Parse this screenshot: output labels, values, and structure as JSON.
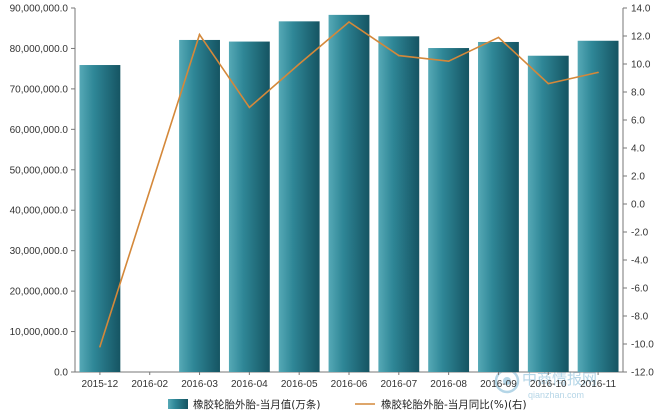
{
  "chart_data": {
    "type": "bar",
    "categories": [
      "2015-12",
      "2016-02",
      "2016-03",
      "2016-04",
      "2016-05",
      "2016-06",
      "2016-07",
      "2016-08",
      "2016-09",
      "2016-10",
      "2016-11"
    ],
    "series": [
      {
        "name": "橡胶轮胎外胎-当月值(万条)",
        "type": "bar",
        "axis": "left",
        "color": "#2a7d8e",
        "values": [
          75900000,
          null,
          82100000,
          81700000,
          86700000,
          88300000,
          83000000,
          80100000,
          81600000,
          78200000,
          81900000
        ]
      },
      {
        "name": "橡胶轮胎外胎-当月同比(%)(右)",
        "type": "line",
        "axis": "right",
        "color": "#d4883a",
        "values": [
          -10.2,
          null,
          12.1,
          6.9,
          10.0,
          13.0,
          10.6,
          10.2,
          11.9,
          8.6,
          9.4
        ]
      }
    ],
    "left_axis": {
      "min": 0,
      "max": 90000000,
      "ticks": [
        "0.0",
        "10,000,000.0",
        "20,000,000.0",
        "30,000,000.0",
        "40,000,000.0",
        "50,000,000.0",
        "60,000,000.0",
        "70,000,000.0",
        "80,000,000.0",
        "90,000,000.0"
      ]
    },
    "right_axis": {
      "min": -12,
      "max": 14,
      "ticks": [
        "-12.0",
        "-10.0",
        "-8.0",
        "-6.0",
        "-4.0",
        "-2.0",
        "0.0",
        "2.0",
        "4.0",
        "6.0",
        "8.0",
        "10.0",
        "12.0",
        "14.0"
      ]
    },
    "grid": false,
    "legend_position": "bottom-center"
  },
  "legend": {
    "bar_label": "橡胶轮胎外胎-当月值(万条)",
    "line_label": "橡胶轮胎外胎-当月同比(%)(右)"
  },
  "watermark": {
    "cn": "中商情报网",
    "en": "qianzhan.com"
  }
}
